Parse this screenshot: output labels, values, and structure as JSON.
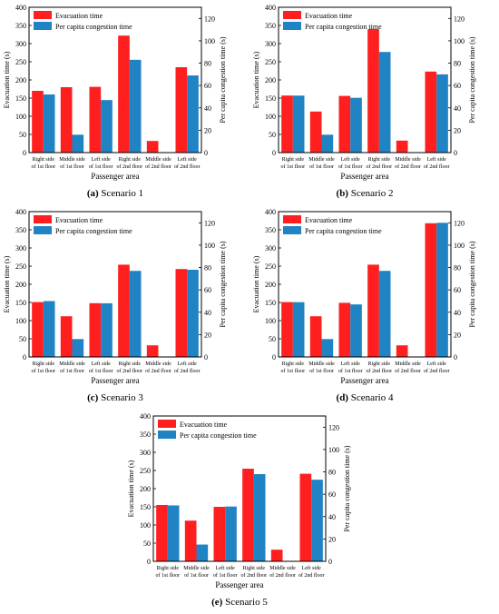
{
  "colors": {
    "evacuation": "#ff1f1f",
    "congestion": "#1f83c4"
  },
  "chart_data": [
    {
      "type": "bar",
      "caption_letter": "(a)",
      "caption_text": " Scenario 1",
      "categories": [
        "Right side|of 1st floor",
        "Middle side|of 1st floor",
        "Left side|of 1st floor",
        "Right side|of 2nd floor",
        "Middle side|of 2nd floor",
        "Left side|of 2nd floor"
      ],
      "series": [
        {
          "name": "Evacuation time",
          "axis": "left",
          "values": [
            170,
            180,
            181,
            322,
            32,
            235
          ]
        },
        {
          "name": "Per capita congestion time",
          "axis": "right",
          "values": [
            52,
            16,
            47,
            83,
            0,
            69
          ]
        }
      ],
      "xlabel": "Passenger area",
      "ylabel": "Evacuation time (s)",
      "y2label": "Per capita congestion time (s)",
      "ylim": [
        0,
        400
      ],
      "y2lim": [
        0,
        130
      ],
      "yticks": [
        0,
        50,
        100,
        150,
        200,
        250,
        300,
        350,
        400
      ],
      "y2ticks": [
        0,
        20,
        40,
        60,
        80,
        100,
        120
      ],
      "legend": "top-left",
      "grid": false
    },
    {
      "type": "bar",
      "caption_letter": "(b)",
      "caption_text": " Scenario 2",
      "categories": [
        "Right side|of 1st floor",
        "Middle side|of 1st floor",
        "Left side|of 1st floor",
        "Right side|of 2nd floor",
        "Middle side|of 2nd floor",
        "Left side|of 2nd floor"
      ],
      "series": [
        {
          "name": "Evacuation time",
          "axis": "left",
          "values": [
            157,
            113,
            156,
            340,
            33,
            223
          ]
        },
        {
          "name": "Per capita congestion time",
          "axis": "right",
          "values": [
            51,
            16,
            49,
            90,
            0,
            70
          ]
        }
      ],
      "xlabel": "Passenger area",
      "ylabel": "Evacuation time (s)",
      "y2label": "Per capita congestion time (s)",
      "ylim": [
        0,
        400
      ],
      "y2lim": [
        0,
        130
      ],
      "yticks": [
        0,
        50,
        100,
        150,
        200,
        250,
        300,
        350,
        400
      ],
      "y2ticks": [
        0,
        20,
        40,
        60,
        80,
        100,
        120
      ],
      "legend": "top-left",
      "grid": false
    },
    {
      "type": "bar",
      "caption_letter": "(c)",
      "caption_text": " Scenario 3",
      "categories": [
        "Right side|of 1st floor",
        "Middle side|of 1st floor",
        "Left side|of 1st floor",
        "Right side|of 2nd floor",
        "Middle side|of 2nd floor",
        "Left side|of 2nd floor"
      ],
      "series": [
        {
          "name": "Evacuation time",
          "axis": "left",
          "values": [
            151,
            112,
            148,
            254,
            32,
            242
          ]
        },
        {
          "name": "Per capita congestion time",
          "axis": "right",
          "values": [
            50,
            16,
            48,
            77,
            0,
            78
          ]
        }
      ],
      "xlabel": "Passenger area",
      "ylabel": "Evacuation time (s)",
      "y2label": "Per capita congestion time (s)",
      "ylim": [
        0,
        400
      ],
      "y2lim": [
        0,
        130
      ],
      "yticks": [
        0,
        50,
        100,
        150,
        200,
        250,
        300,
        350,
        400
      ],
      "y2ticks": [
        0,
        20,
        40,
        60,
        80,
        100,
        120
      ],
      "legend": "top-left",
      "grid": false
    },
    {
      "type": "bar",
      "caption_letter": "(d)",
      "caption_text": " Scenario 4",
      "categories": [
        "Right side|of 1st floor",
        "Middle side|of 1st floor",
        "Left side|of 1st floor",
        "Right side|of 2nd floor",
        "Middle side|of 2nd floor",
        "Left side|of 2nd floor"
      ],
      "series": [
        {
          "name": "Evacuation time",
          "axis": "left",
          "values": [
            151,
            112,
            149,
            254,
            32,
            368
          ]
        },
        {
          "name": "Per capita congestion time",
          "axis": "right",
          "values": [
            49,
            16,
            47,
            77,
            0,
            120
          ]
        }
      ],
      "xlabel": "Passenger area",
      "ylabel": "Evacuation time (s)",
      "y2label": "Per capita congestion time (s)",
      "ylim": [
        0,
        400
      ],
      "y2lim": [
        0,
        130
      ],
      "yticks": [
        0,
        50,
        100,
        150,
        200,
        250,
        300,
        350,
        400
      ],
      "y2ticks": [
        0,
        20,
        40,
        60,
        80,
        100,
        120
      ],
      "legend": "top-left",
      "grid": false
    },
    {
      "type": "bar",
      "caption_letter": "(e)",
      "caption_text": " Scenario 5",
      "categories": [
        "Right side|of 1st floor",
        "Middle side|of 1st floor",
        "Left side|of 1st floor",
        "Right side|of 2nd floor",
        "Middle side|of 2nd floor",
        "Left side|of 2nd floor"
      ],
      "series": [
        {
          "name": "Evacuation time",
          "axis": "left",
          "values": [
            155,
            112,
            150,
            255,
            32,
            241
          ]
        },
        {
          "name": "Per capita congestion time",
          "axis": "right",
          "values": [
            50,
            15,
            49,
            78,
            0,
            73
          ]
        }
      ],
      "xlabel": "Passenger area",
      "ylabel": "Evacuation time (s)",
      "y2label": "Per capita congestion time (s)",
      "ylim": [
        0,
        400
      ],
      "y2lim": [
        0,
        130
      ],
      "yticks": [
        0,
        50,
        100,
        150,
        200,
        250,
        300,
        350,
        400
      ],
      "y2ticks": [
        0,
        20,
        40,
        60,
        80,
        100,
        120
      ],
      "legend": "top-left",
      "grid": false
    }
  ]
}
